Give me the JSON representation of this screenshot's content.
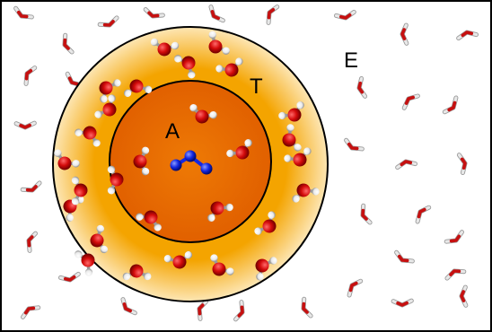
{
  "labels": {
    "active": "A",
    "transition": "T",
    "environment": "E"
  },
  "colors": {
    "frame": "#000000",
    "transition_outer": "#fde6b4",
    "transition_inner": "#f4a400",
    "active_outer": "#e16000",
    "active_inner": "#ee7a05",
    "oxygen": "#d40b0b",
    "hydrogen": "#ffffff",
    "solute": "#1428e0",
    "stick_oxygen": "#c61010",
    "stick_hydrogen": "#e6e6e6"
  },
  "molecules": {
    "environment_water_icons": 34,
    "transition_water_balls": 22,
    "active_water_balls": 6,
    "solute": "N3"
  }
}
